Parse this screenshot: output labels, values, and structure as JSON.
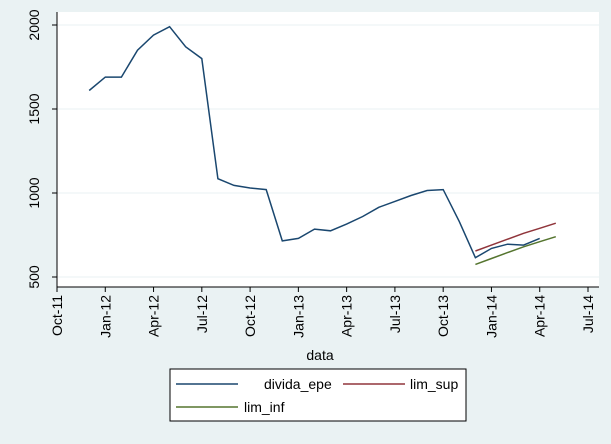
{
  "chart_data": {
    "type": "line",
    "title": "",
    "xlabel": "data",
    "ylabel": "",
    "ylim": [
      500,
      2000
    ],
    "yticks": [
      500,
      1000,
      1500,
      2000
    ],
    "x_tick_labels": [
      "Oct-11",
      "Jan-12",
      "Apr-12",
      "Jul-12",
      "Oct-12",
      "Jan-13",
      "Apr-13",
      "Jul-13",
      "Oct-13",
      "Jan-14",
      "Apr-14",
      "Jul-14"
    ],
    "legend_position": "bottom",
    "series": [
      {
        "name": "divida_epe",
        "color": "#1a476f",
        "x": [
          "Dec-11",
          "Jan-12",
          "Feb-12",
          "Mar-12",
          "Apr-12",
          "May-12",
          "Jun-12",
          "Jul-12",
          "Aug-12",
          "Sep-12",
          "Oct-12",
          "Nov-12",
          "Dec-12",
          "Jan-13",
          "Feb-13",
          "Mar-13",
          "Apr-13",
          "May-13",
          "Jun-13",
          "Jul-13",
          "Aug-13",
          "Sep-13",
          "Oct-13",
          "Nov-13",
          "Dec-13",
          "Jan-14",
          "Feb-14",
          "Mar-14",
          "Apr-14"
        ],
        "values": [
          1610,
          1690,
          1690,
          1850,
          1940,
          1990,
          1870,
          1800,
          1085,
          1045,
          1030,
          1020,
          715,
          730,
          785,
          775,
          815,
          860,
          915,
          950,
          985,
          1015,
          1020,
          830,
          615,
          670,
          695,
          690,
          730
        ]
      },
      {
        "name": "lim_sup",
        "color": "#90353b",
        "x": [
          "Dec-13",
          "Jan-14",
          "Feb-14",
          "Mar-14",
          "Apr-14",
          "May-14"
        ],
        "values": [
          655,
          690,
          725,
          760,
          790,
          820
        ]
      },
      {
        "name": "lim_inf",
        "color": "#55752f",
        "x": [
          "Dec-13",
          "Jan-14",
          "Feb-14",
          "Mar-14",
          "Apr-14",
          "May-14"
        ],
        "values": [
          575,
          610,
          645,
          680,
          710,
          740
        ]
      }
    ]
  }
}
